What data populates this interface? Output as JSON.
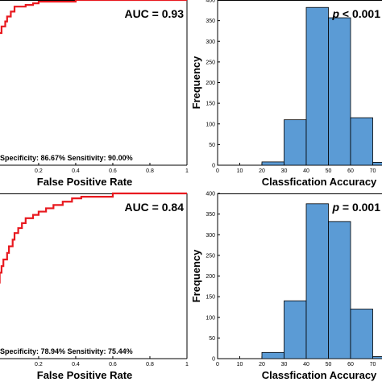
{
  "chart_data": [
    {
      "type": "line",
      "panel": "roc-top",
      "xlabel": "False Positive Rate",
      "ylabel": "",
      "xlim": [
        -0.03,
        1.0
      ],
      "ylim": [
        0,
        1.0
      ],
      "x_ticks": [
        "0.2",
        "0.4",
        "0.6",
        "0.8",
        "1"
      ],
      "x_tick_values": [
        0.2,
        0.4,
        0.6,
        0.8,
        1.0
      ],
      "annotation": "AUC = 0.93",
      "footnote": "Specificity: 86.67% Sensitivity: 90.00%",
      "line_color": "#e8191f",
      "series": [
        {
          "x": [
            -0.03,
            -0.03,
            -0.02,
            -0.02,
            0.0,
            0.0,
            0.02,
            0.02,
            0.03,
            0.03,
            0.05,
            0.05,
            0.07,
            0.07,
            0.1,
            0.1,
            0.13,
            0.13,
            0.17,
            0.17,
            0.2,
            0.2,
            0.4,
            0.4,
            1.0
          ],
          "y": [
            0.72,
            0.76,
            0.76,
            0.8,
            0.8,
            0.84,
            0.84,
            0.87,
            0.87,
            0.9,
            0.9,
            0.93,
            0.93,
            0.96,
            0.96,
            0.96,
            0.96,
            0.97,
            0.97,
            0.98,
            0.98,
            0.99,
            0.99,
            1.0,
            1.0
          ]
        }
      ]
    },
    {
      "type": "bar",
      "panel": "hist-top",
      "xlabel": "Classfication Accuracy",
      "ylabel": "Frequency",
      "xlim": [
        0,
        80
      ],
      "ylim": [
        0,
        400
      ],
      "x_ticks": [
        "0",
        "10",
        "20",
        "30",
        "40",
        "50",
        "60",
        "70"
      ],
      "y_ticks": [
        "0",
        "50",
        "100",
        "150",
        "200",
        "250",
        "300",
        "350",
        "400"
      ],
      "annotation_italic": "p",
      "annotation": " < 0.001",
      "bin_width": 10,
      "bin_starts": [
        20,
        30,
        40,
        50,
        60,
        70
      ],
      "values": [
        8,
        110,
        382,
        357,
        115,
        7
      ],
      "bar_color": "#5b9bd5"
    },
    {
      "type": "line",
      "panel": "roc-bottom",
      "xlabel": "False Positive Rate",
      "ylabel": "",
      "xlim": [
        -0.03,
        1.0
      ],
      "ylim": [
        0,
        1.0
      ],
      "x_ticks": [
        "0.2",
        "0.4",
        "0.6",
        "0.8",
        "1"
      ],
      "x_tick_values": [
        0.2,
        0.4,
        0.6,
        0.8,
        1.0
      ],
      "annotation": "AUC = 0.84",
      "footnote": "Specificity: 78.94% Sensitivity: 75.44%",
      "line_color": "#e8191f",
      "series": [
        {
          "x": [
            -0.03,
            -0.03,
            -0.01,
            -0.01,
            0.0,
            0.0,
            0.01,
            0.01,
            0.03,
            0.03,
            0.04,
            0.04,
            0.06,
            0.06,
            0.07,
            0.07,
            0.09,
            0.09,
            0.11,
            0.11,
            0.13,
            0.13,
            0.17,
            0.17,
            0.2,
            0.2,
            0.24,
            0.24,
            0.28,
            0.28,
            0.33,
            0.33,
            0.38,
            0.38,
            0.43,
            0.43,
            0.6,
            0.6,
            1.0
          ],
          "y": [
            0.42,
            0.46,
            0.46,
            0.52,
            0.52,
            0.56,
            0.56,
            0.6,
            0.6,
            0.64,
            0.64,
            0.68,
            0.68,
            0.72,
            0.72,
            0.76,
            0.76,
            0.79,
            0.79,
            0.82,
            0.82,
            0.85,
            0.85,
            0.87,
            0.87,
            0.89,
            0.89,
            0.91,
            0.91,
            0.93,
            0.93,
            0.95,
            0.95,
            0.97,
            0.97,
            0.98,
            0.98,
            1.0,
            1.0
          ]
        }
      ]
    },
    {
      "type": "bar",
      "panel": "hist-bottom",
      "xlabel": "Classfication Accuracy",
      "ylabel": "Frequency",
      "xlim": [
        0,
        80
      ],
      "ylim": [
        0,
        400
      ],
      "x_ticks": [
        "0",
        "10",
        "20",
        "30",
        "40",
        "50",
        "60",
        "70"
      ],
      "y_ticks": [
        "0",
        "50",
        "100",
        "150",
        "200",
        "250",
        "300",
        "350",
        "400"
      ],
      "annotation_italic": "p",
      "annotation": " = 0.001",
      "bin_width": 10,
      "bin_starts": [
        20,
        30,
        40,
        50,
        60,
        70
      ],
      "values": [
        15,
        140,
        375,
        332,
        120,
        5
      ],
      "bar_color": "#5b9bd5",
      "marker_x": 78,
      "marker_top": 237,
      "marker_color": "#e8191f"
    }
  ]
}
